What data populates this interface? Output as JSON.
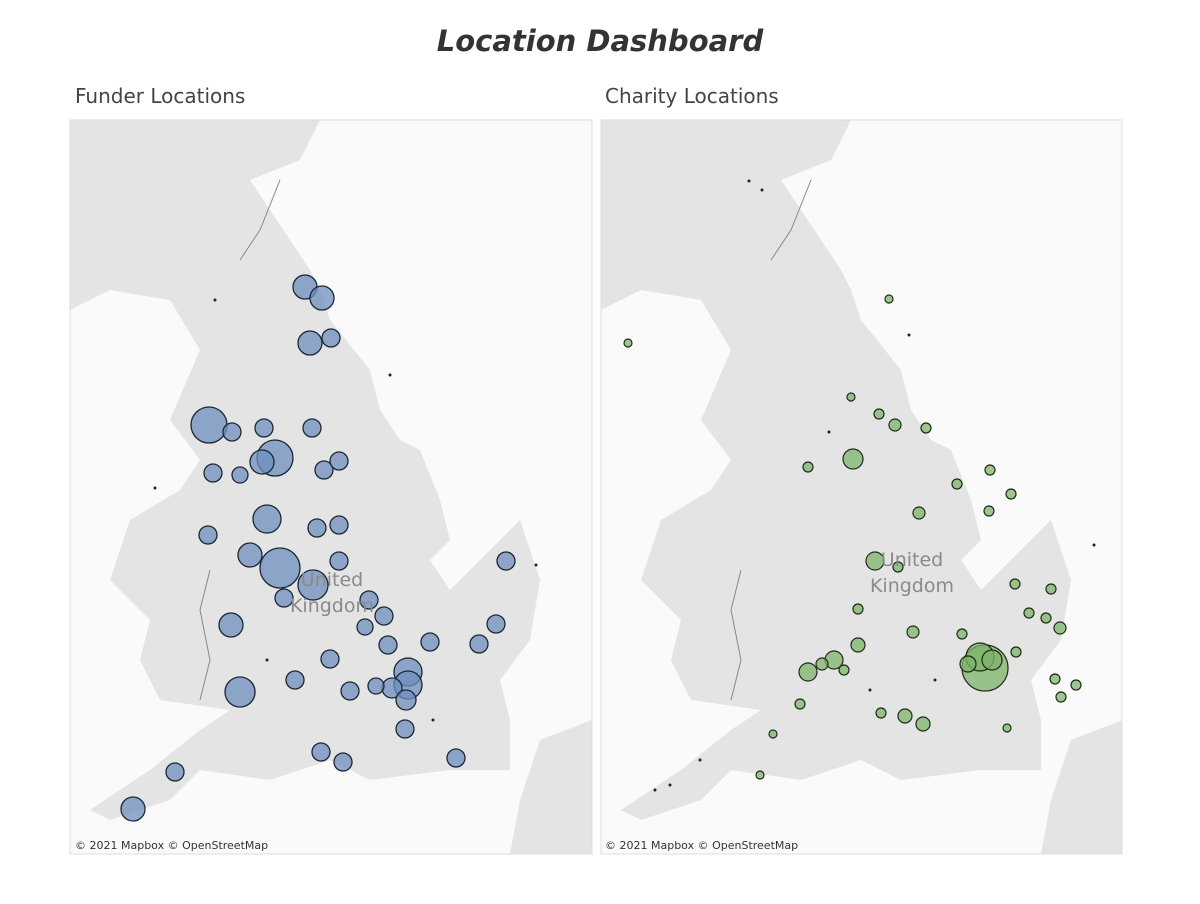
{
  "header": {
    "title": "Location Dashboard"
  },
  "panels": [
    {
      "title": "Funder Locations",
      "map_label": [
        "United",
        "Kingdom"
      ],
      "attribution": "© 2021 Mapbox © OpenStreetMap"
    },
    {
      "title": "Charity Locations",
      "map_label": [
        "United",
        "Kingdom"
      ],
      "attribution": "© 2021 Mapbox © OpenStreetMap"
    }
  ]
}
